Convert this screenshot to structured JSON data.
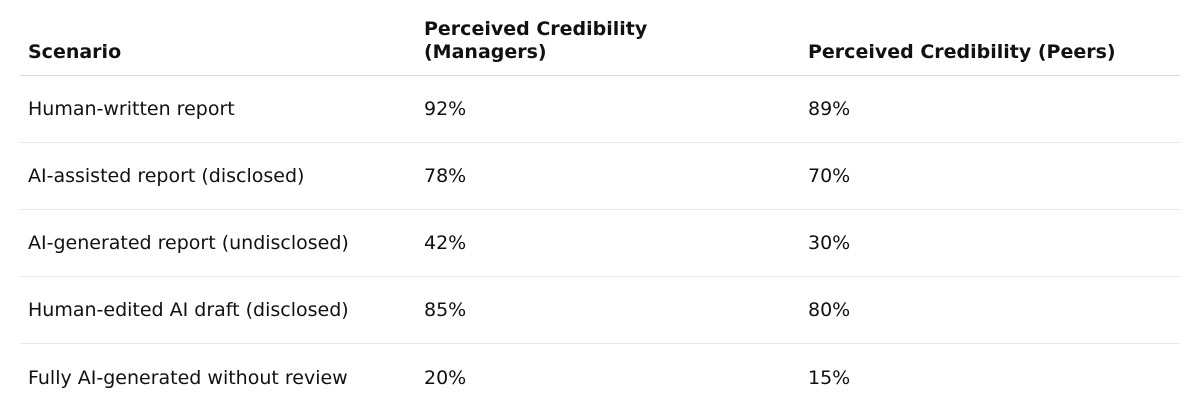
{
  "table": {
    "headers": [
      "Scenario",
      "Perceived Credibility (Managers)",
      "Perceived Credibility (Peers)"
    ],
    "rows": [
      [
        "Human-written report",
        "92%",
        "89%"
      ],
      [
        "AI-assisted report (disclosed)",
        "78%",
        "70%"
      ],
      [
        "AI-generated report (undisclosed)",
        "42%",
        "30%"
      ],
      [
        "Human-edited AI draft (disclosed)",
        "85%",
        "80%"
      ],
      [
        "Fully AI-generated without review",
        "20%",
        "15%"
      ]
    ]
  }
}
